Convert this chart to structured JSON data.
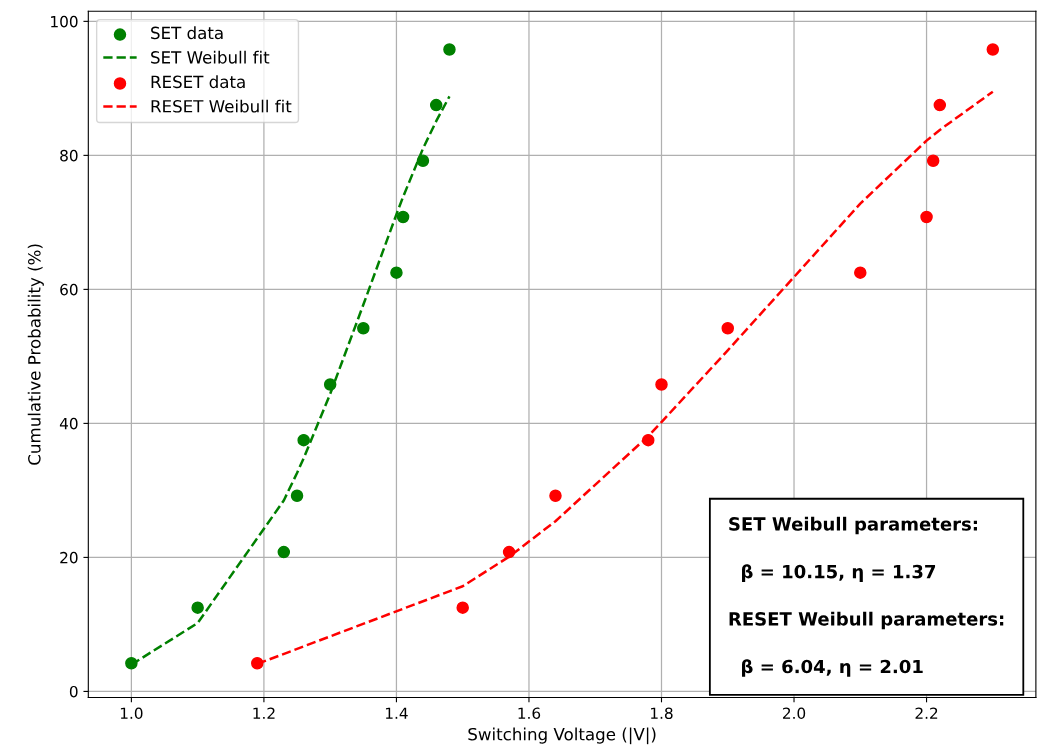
{
  "chart_data": {
    "type": "scatter",
    "xlabel": "Switching Voltage (|V|)",
    "ylabel": "Cumulative Probability (%)",
    "series": [
      {
        "name": "SET data",
        "color": "#008000",
        "marker": "circle",
        "x": [
          1.0,
          1.1,
          1.23,
          1.25,
          1.26,
          1.3,
          1.35,
          1.4,
          1.41,
          1.44,
          1.46,
          1.48
        ],
        "values": [
          4.2,
          12.5,
          20.8,
          29.2,
          37.5,
          45.8,
          54.2,
          62.5,
          70.8,
          79.2,
          87.5,
          95.8
        ]
      },
      {
        "name": "SET Weibull fit",
        "type": "line",
        "color": "#008000",
        "line_style": "dashed",
        "x": [
          1.0,
          1.1,
          1.23,
          1.25,
          1.26,
          1.3,
          1.35,
          1.4,
          1.41,
          1.44,
          1.46,
          1.48
        ],
        "values": [
          4.0,
          10.2,
          28.5,
          32.6,
          34.8,
          44.4,
          57.7,
          71.2,
          73.8,
          81.0,
          85.1,
          88.8
        ]
      },
      {
        "name": "RESET data",
        "color": "#ff0000",
        "marker": "circle",
        "x": [
          1.19,
          1.5,
          1.57,
          1.64,
          1.78,
          1.8,
          1.9,
          2.1,
          2.2,
          2.21,
          2.22,
          2.3
        ],
        "values": [
          4.2,
          12.5,
          20.8,
          29.2,
          37.5,
          45.8,
          54.2,
          62.5,
          70.8,
          79.2,
          87.5,
          95.8
        ]
      },
      {
        "name": "RESET Weibull fit",
        "type": "line",
        "color": "#ff0000",
        "line_style": "dashed",
        "x": [
          1.19,
          1.5,
          1.57,
          1.64,
          1.78,
          1.8,
          1.9,
          2.1,
          2.2,
          2.21,
          2.22,
          2.3
        ],
        "values": [
          4.1,
          15.7,
          20.1,
          25.4,
          38.1,
          40.2,
          50.9,
          72.8,
          82.2,
          83.0,
          83.8,
          89.5
        ]
      }
    ],
    "xlim": [
      0.935,
      2.365
    ],
    "ylim": [
      -0.9,
      101.5
    ],
    "xticks": [
      {
        "value": 1.0,
        "label": "1.0"
      },
      1.2,
      1.4,
      1.6,
      1.8,
      {
        "value": 2.0,
        "label": "2.0"
      },
      2.2
    ],
    "yticks": [
      0,
      20,
      40,
      60,
      80,
      100
    ],
    "grid": true,
    "legend": "top left",
    "annotations": [
      "SET Weibull parameters:",
      "β = 10.15, η = 1.37",
      "RESET Weibull parameters:",
      "β = 6.04, η = 2.01"
    ]
  }
}
